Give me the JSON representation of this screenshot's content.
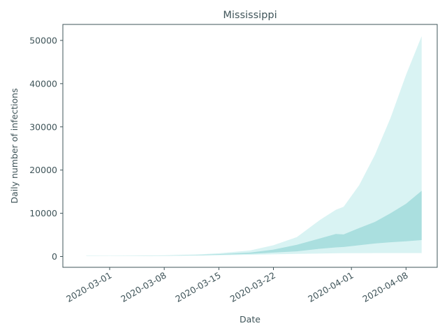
{
  "chart_data": {
    "type": "area",
    "title": "Mississippi",
    "xlabel": "Date",
    "ylabel": "Daily number of infections",
    "x_ticks": [
      "2020-03-01",
      "2020-03-08",
      "2020-03-15",
      "2020-03-22",
      "2020-04-01",
      "2020-04-08"
    ],
    "y_ticks": [
      0,
      10000,
      20000,
      30000,
      40000,
      50000
    ],
    "xlim": [
      "2020-02-24",
      "2020-04-12"
    ],
    "ylim": [
      -2500,
      53700
    ],
    "grid": false,
    "colors": {
      "outer_band": "#d9f3f3",
      "inner_band": "#aadfdf",
      "axis": "#3f5459"
    },
    "x": [
      "2020-02-27",
      "2020-03-01",
      "2020-03-05",
      "2020-03-08",
      "2020-03-12",
      "2020-03-15",
      "2020-03-19",
      "2020-03-22",
      "2020-03-25",
      "2020-03-28",
      "2020-03-30",
      "2020-03-31",
      "2020-04-02",
      "2020-04-04",
      "2020-04-06",
      "2020-04-08",
      "2020-04-10"
    ],
    "series": [
      {
        "lower": [
          80,
          90,
          120,
          150,
          220,
          300,
          400,
          500,
          600,
          700,
          750,
          760,
          780,
          800,
          800,
          800,
          800
        ],
        "upper": [
          120,
          150,
          200,
          280,
          450,
          750,
          1400,
          2600,
          4500,
          8500,
          10800,
          11500,
          16500,
          23500,
          32000,
          42000,
          51000
        ]
      },
      {
        "lower": [
          90,
          100,
          140,
          180,
          260,
          400,
          600,
          900,
          1200,
          1800,
          2100,
          2200,
          2600,
          3000,
          3300,
          3500,
          3800
        ],
        "upper": [
          110,
          130,
          170,
          230,
          350,
          550,
          900,
          1600,
          2700,
          4200,
          5200,
          5100,
          6600,
          8000,
          10000,
          12200,
          15200
        ]
      }
    ]
  }
}
